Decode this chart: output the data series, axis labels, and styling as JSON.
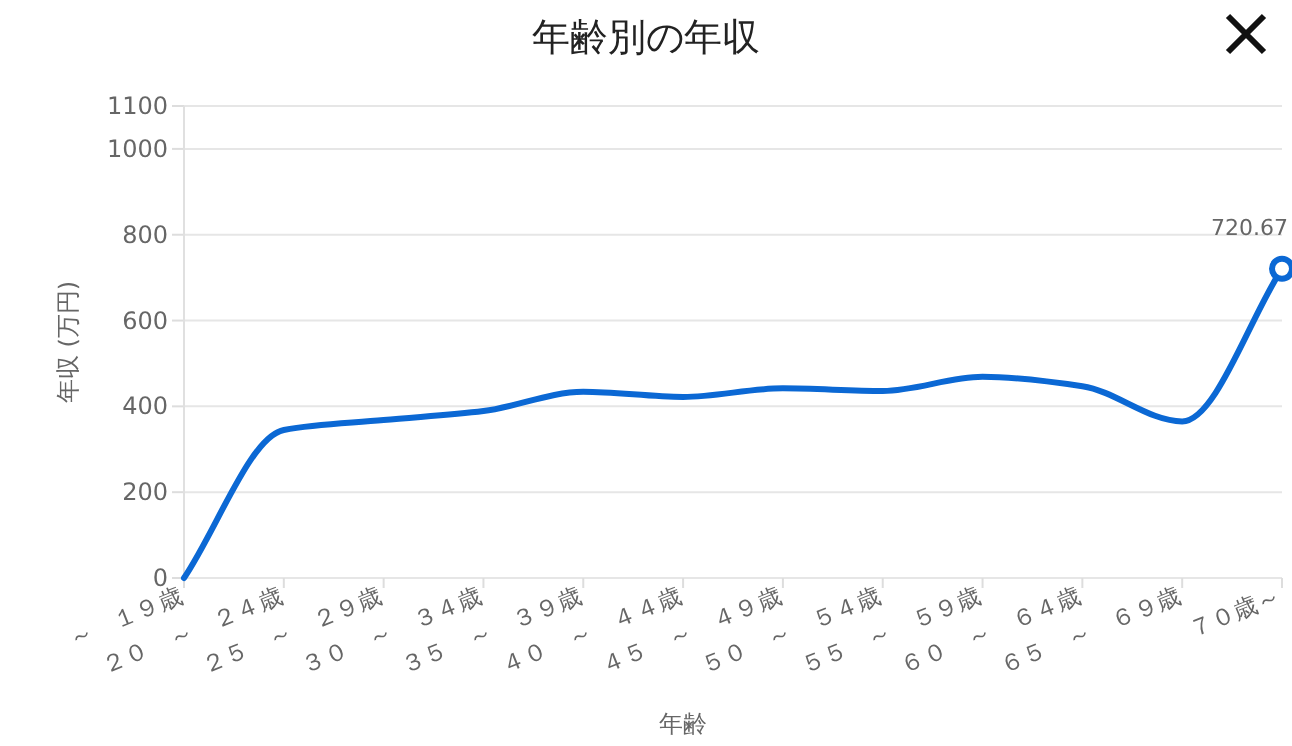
{
  "chart_data": {
    "type": "line",
    "title": "年齢別の年収",
    "xlabel": "年齢",
    "ylabel": "年収 (万円)",
    "categories": [
      "～　１９歳",
      "２０　～　２４歳",
      "２５　～　２９歳",
      "３０　～　３４歳",
      "３５　～　３９歳",
      "４０　～　４４歳",
      "４５　～　４９歳",
      "５０　～　５４歳",
      "５５　～　５９歳",
      "６０　～　６４歳",
      "６５　～　６９歳",
      "７０歳～"
    ],
    "series": [
      {
        "color": "#0b68d4",
        "values": [
          0,
          345,
          368,
          389,
          434,
          422,
          442,
          436,
          469,
          447,
          365,
          720.67
        ],
        "value_labels": [
          null,
          null,
          null,
          null,
          null,
          null,
          null,
          null,
          null,
          null,
          null,
          "720.67"
        ]
      }
    ],
    "ylim": [
      0,
      1100
    ],
    "yticks": [
      0,
      200,
      400,
      600,
      800,
      1000,
      1100
    ],
    "grid": "y",
    "line_style": "solid"
  }
}
